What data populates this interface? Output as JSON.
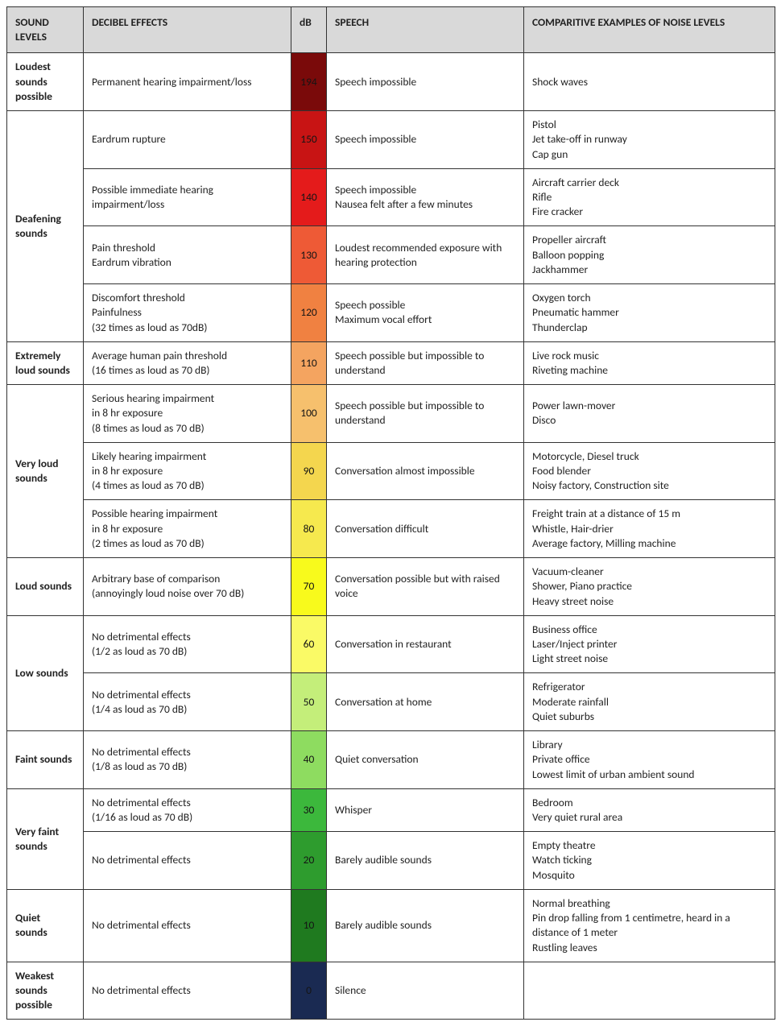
{
  "headers": {
    "level": "SOUND LEVELS",
    "effect": "DECIBEL EFFECTS",
    "db": "dB",
    "speech": "SPEECH",
    "examples": "COMPARITIVE EXAMPLES OF NOISE LEVELS"
  },
  "db_text_dark": "#1a1a1a",
  "db_text_darker": "#151515",
  "groups": [
    {
      "level": "Loudest sounds possible",
      "rows": [
        {
          "db": 194,
          "color": "#7a0a0a",
          "effect": [
            "Permanent hearing impairment/loss"
          ],
          "speech": [
            "Speech impossible"
          ],
          "examples": [
            "Shock waves"
          ]
        }
      ]
    },
    {
      "level": "Deafening sounds",
      "rows": [
        {
          "db": 150,
          "color": "#c81414",
          "effect": [
            "Eardrum rupture"
          ],
          "speech": [
            "Speech impossible"
          ],
          "examples": [
            "Pistol",
            "Jet take-off in runway",
            "Cap gun"
          ]
        },
        {
          "db": 140,
          "color": "#e41b1b",
          "effect": [
            "Possible immediate hearing impairment/loss"
          ],
          "speech": [
            "Speech impossible",
            "Nausea felt after a few minutes"
          ],
          "examples": [
            "Aircraft carrier deck",
            "Rifle",
            "Fire cracker"
          ]
        },
        {
          "db": 130,
          "color": "#ee5a36",
          "effect": [
            "Pain threshold",
            "Eardrum vibration"
          ],
          "speech": [
            "Loudest recommended exposure with hearing protection"
          ],
          "examples": [
            "Propeller aircraft",
            "Balloon popping",
            "Jackhammer"
          ]
        },
        {
          "db": 120,
          "color": "#f08141",
          "effect": [
            "Discomfort threshold",
            "Painfulness",
            "(32 times as loud as 70dB)"
          ],
          "speech": [
            "Speech possible",
            "Maximum vocal effort"
          ],
          "examples": [
            "Oxygen torch",
            "Pneumatic hammer",
            "Thunderclap"
          ]
        }
      ]
    },
    {
      "level": "Extremely loud sounds",
      "rows": [
        {
          "db": 110,
          "color": "#f4a460",
          "effect": [
            "Average human pain threshold",
            "(16 times as loud as 70 dB)"
          ],
          "speech": [
            "Speech possible but impossible to understand"
          ],
          "examples": [
            "Live rock music",
            "Riveting machine"
          ]
        }
      ]
    },
    {
      "level": "Very loud sounds",
      "rows": [
        {
          "db": 100,
          "color": "#f6c06d",
          "effect": [
            "Serious hearing impairment",
            "in 8 hr exposure",
            "(8 times as loud as 70 dB)"
          ],
          "speech": [
            "Speech possible but impossible to understand"
          ],
          "examples": [
            "Power lawn-mover",
            "Disco"
          ]
        },
        {
          "db": 90,
          "color": "#f4d64e",
          "effect": [
            "Likely hearing impairment",
            "in 8 hr exposure",
            "(4 times as loud as 70 dB)"
          ],
          "speech": [
            "Conversation almost impossible"
          ],
          "examples": [
            "Motorcycle, Diesel truck",
            "Food blender",
            "Noisy factory, Construction site"
          ]
        },
        {
          "db": 80,
          "color": "#f6e94e",
          "effect": [
            "Possible hearing impairment",
            "in 8 hr exposure",
            "(2 times as loud as 70 dB)"
          ],
          "speech": [
            "Conversation difficult"
          ],
          "examples": [
            "Freight train at a distance of 15 m",
            "Whistle, Hair-drier",
            "Average factory, Milling machine"
          ]
        }
      ]
    },
    {
      "level": "Loud sounds",
      "rows": [
        {
          "db": 70,
          "color": "#f8fa1c",
          "effect": [
            "Arbitrary base of comparison",
            "(annoyingly loud noise over 70 dB)"
          ],
          "speech": [
            "Conversation possible but with raised voice"
          ],
          "examples": [
            "Vacuum-cleaner",
            "Shower, Piano practice",
            "Heavy street noise"
          ]
        }
      ]
    },
    {
      "level": "Low sounds",
      "rows": [
        {
          "db": 60,
          "color": "#fafa66",
          "effect": [
            "No detrimental effects",
            "(1/2 as loud as 70 dB)"
          ],
          "speech": [
            "Conversation in restaurant"
          ],
          "examples": [
            "Business office",
            "Laser/Inject printer",
            "Light street noise"
          ]
        },
        {
          "db": 50,
          "color": "#c4ee7a",
          "effect": [
            "No detrimental effects",
            "(1/4 as loud as 70 dB)"
          ],
          "speech": [
            "Conversation at home"
          ],
          "examples": [
            "Refrigerator",
            "Moderate rainfall",
            "Quiet suburbs"
          ]
        }
      ]
    },
    {
      "level": "Faint sounds",
      "rows": [
        {
          "db": 40,
          "color": "#8edc60",
          "effect": [
            "No detrimental effects",
            "(1/8 as loud as 70 dB)"
          ],
          "speech": [
            "Quiet conversation"
          ],
          "examples": [
            "Library",
            "Private office",
            "Lowest limit of urban ambient sound"
          ]
        }
      ]
    },
    {
      "level": "Very faint sounds",
      "rows": [
        {
          "db": 30,
          "color": "#3cb83c",
          "effect": [
            "No detrimental effects",
            "(1/16 as loud as 70 dB)"
          ],
          "speech": [
            "Whisper"
          ],
          "examples": [
            "Bedroom",
            "Very quiet rural area"
          ]
        },
        {
          "db": 20,
          "color": "#2e9c2e",
          "effect": [
            "No detrimental effects"
          ],
          "speech": [
            "Barely audible sounds"
          ],
          "examples": [
            "Empty theatre",
            "Watch ticking",
            "Mosquito"
          ]
        }
      ]
    },
    {
      "level": "Quiet sounds",
      "rows": [
        {
          "db": 10,
          "color": "#1f7a1f",
          "effect": [
            "No detrimental effects"
          ],
          "speech": [
            "Barely audible sounds"
          ],
          "examples": [
            "Normal breathing",
            "Pin drop falling from 1 centimetre, heard in a distance of 1 meter",
            "Rustling leaves"
          ]
        }
      ]
    },
    {
      "level": "Weakest sounds possible",
      "rows": [
        {
          "db": 0,
          "color": "#1a2a52",
          "effect": [
            "No detrimental effects"
          ],
          "speech": [
            "Silence"
          ],
          "examples": [
            ""
          ]
        }
      ]
    }
  ]
}
